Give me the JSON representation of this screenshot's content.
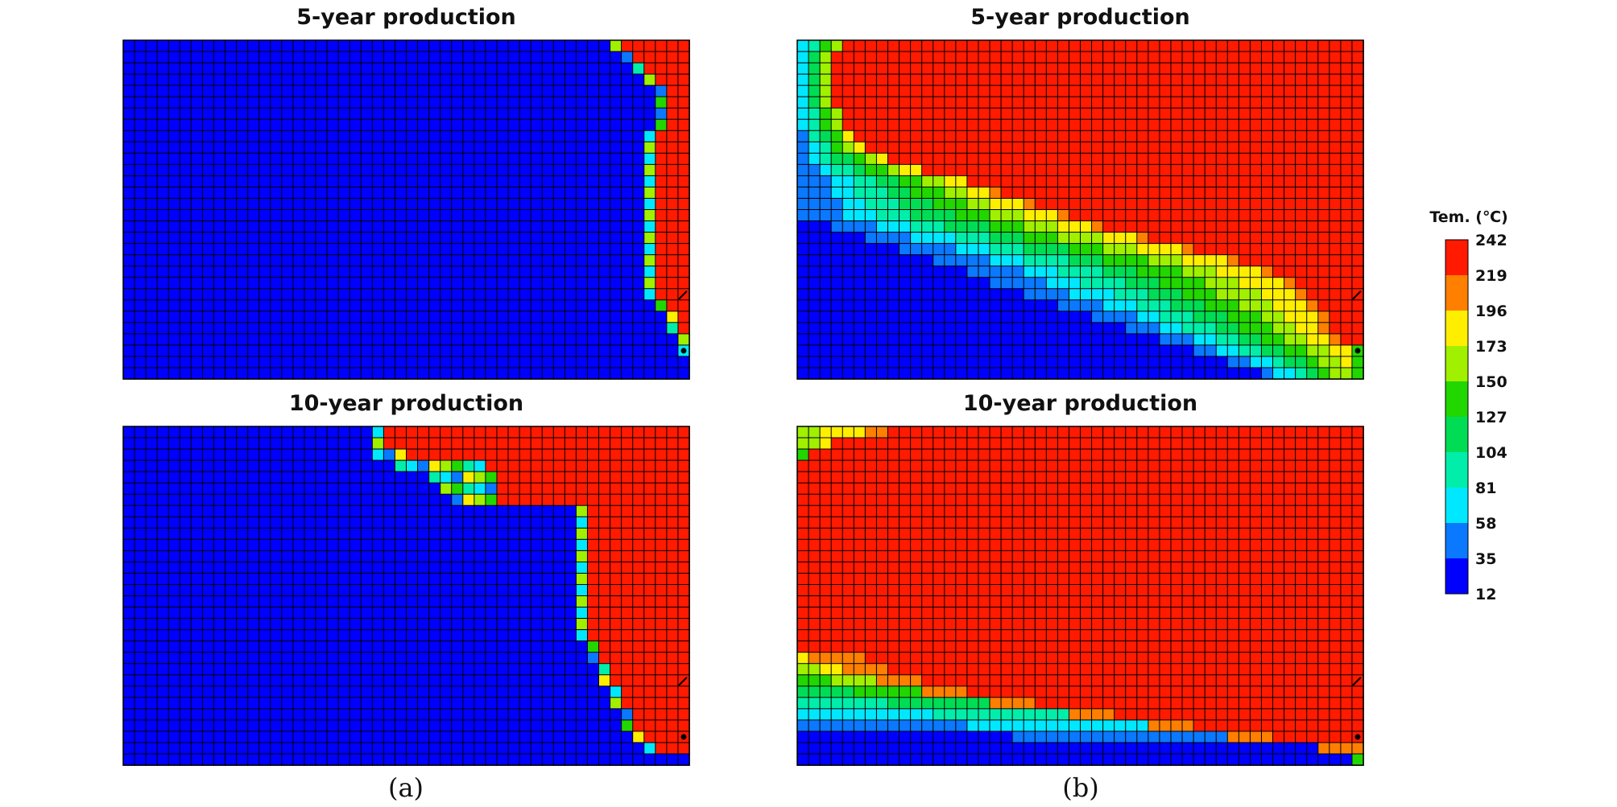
{
  "figure": {
    "panel_labels": [
      "(a)",
      "(b)"
    ]
  },
  "chart_data": {
    "type": "heatmap",
    "variable": "temperature",
    "colorbar": {
      "title": "Tem. (℃)",
      "ticks": [
        242,
        219,
        196,
        173,
        150,
        127,
        104,
        81,
        58,
        35,
        12
      ],
      "colors": [
        "#ff1a00",
        "#ff7f00",
        "#ffee00",
        "#a0f000",
        "#22d600",
        "#00dd55",
        "#00eeaa",
        "#00e8ff",
        "#0a78ff",
        "#0000ff"
      ]
    },
    "grid": {
      "cols": 50,
      "rows": 30
    },
    "panels": [
      {
        "id": "a-5yr",
        "title": "5-year production",
        "group": "(a)",
        "front": [
          [
            43,
            43
          ],
          [
            44,
            44
          ],
          [
            45,
            45
          ],
          [
            46,
            46
          ],
          [
            47,
            47
          ],
          [
            47,
            47
          ],
          [
            47,
            47
          ],
          [
            47,
            47
          ],
          [
            46,
            46
          ],
          [
            46,
            46
          ],
          [
            46,
            46
          ],
          [
            46,
            46
          ],
          [
            46,
            46
          ],
          [
            46,
            46
          ],
          [
            46,
            46
          ],
          [
            46,
            46
          ],
          [
            46,
            46
          ],
          [
            46,
            46
          ],
          [
            46,
            46
          ],
          [
            46,
            46
          ],
          [
            46,
            46
          ],
          [
            46,
            46
          ],
          [
            46,
            46
          ],
          [
            47,
            47
          ],
          [
            48,
            48
          ],
          [
            48,
            48
          ],
          [
            49,
            49
          ],
          [
            49,
            49
          ],
          [
            50,
            50
          ],
          [
            50,
            50
          ]
        ]
      },
      {
        "id": "b-5yr",
        "title": "5-year production",
        "group": "(b)",
        "front": [
          [
            0,
            4
          ],
          [
            0,
            3
          ],
          [
            0,
            3
          ],
          [
            0,
            3
          ],
          [
            0,
            3
          ],
          [
            0,
            3
          ],
          [
            0,
            3
          ],
          [
            0,
            4
          ],
          [
            0,
            5
          ],
          [
            0,
            6
          ],
          [
            0,
            8
          ],
          [
            0,
            11
          ],
          [
            0,
            13
          ],
          [
            0,
            14
          ],
          [
            0,
            16
          ],
          [
            0,
            18
          ],
          [
            0,
            21
          ],
          [
            0,
            24
          ],
          [
            0,
            28
          ],
          [
            0,
            31
          ],
          [
            0,
            34
          ],
          [
            0,
            37
          ],
          [
            0,
            40
          ],
          [
            0,
            43
          ],
          [
            0,
            46
          ],
          [
            0,
            48
          ],
          [
            0,
            50
          ],
          [
            0,
            50
          ],
          [
            0,
            50
          ],
          [
            0,
            50
          ]
        ],
        "hot_front": [
          [
            4,
            50
          ],
          [
            3,
            50
          ],
          [
            3,
            50
          ],
          [
            3,
            50
          ],
          [
            3,
            50
          ],
          [
            3,
            50
          ],
          [
            4,
            50
          ],
          [
            4,
            50
          ],
          [
            5,
            50
          ],
          [
            6,
            50
          ],
          [
            8,
            50
          ],
          [
            11,
            50
          ],
          [
            15,
            50
          ],
          [
            18,
            50
          ],
          [
            21,
            50
          ],
          [
            24,
            50
          ],
          [
            27,
            50
          ],
          [
            31,
            50
          ],
          [
            35,
            50
          ],
          [
            39,
            50
          ],
          [
            42,
            50
          ],
          [
            44,
            50
          ],
          [
            45,
            50
          ],
          [
            46,
            50
          ],
          [
            47,
            50
          ],
          [
            47,
            50
          ],
          [
            48,
            50
          ],
          [
            49,
            50
          ],
          [
            50,
            50
          ],
          [
            50,
            50
          ]
        ]
      },
      {
        "id": "a-10yr",
        "title": "10-year production",
        "group": "(a)",
        "front": [
          [
            22,
            22
          ],
          [
            22,
            22
          ],
          [
            22,
            24
          ],
          [
            24,
            31
          ],
          [
            27,
            32
          ],
          [
            28,
            32
          ],
          [
            29,
            32
          ],
          [
            40,
            40
          ],
          [
            40,
            40
          ],
          [
            40,
            40
          ],
          [
            40,
            40
          ],
          [
            40,
            40
          ],
          [
            40,
            40
          ],
          [
            40,
            40
          ],
          [
            40,
            40
          ],
          [
            40,
            40
          ],
          [
            40,
            40
          ],
          [
            40,
            40
          ],
          [
            40,
            40
          ],
          [
            41,
            41
          ],
          [
            41,
            41
          ],
          [
            42,
            42
          ],
          [
            42,
            42
          ],
          [
            43,
            43
          ],
          [
            43,
            43
          ],
          [
            44,
            44
          ],
          [
            44,
            44
          ],
          [
            45,
            45
          ],
          [
            46,
            46
          ],
          [
            50,
            50
          ]
        ]
      },
      {
        "id": "b-10yr",
        "title": "10-year production",
        "group": "(b)",
        "front": [
          [
            0,
            6
          ],
          [
            0,
            3
          ],
          [
            0,
            1
          ],
          [
            0,
            0
          ],
          [
            0,
            0
          ],
          [
            0,
            0
          ],
          [
            0,
            0
          ],
          [
            0,
            0
          ],
          [
            0,
            0
          ],
          [
            0,
            0
          ],
          [
            0,
            0
          ],
          [
            0,
            0
          ],
          [
            0,
            0
          ],
          [
            0,
            0
          ],
          [
            0,
            0
          ],
          [
            0,
            0
          ],
          [
            0,
            0
          ],
          [
            0,
            0
          ],
          [
            0,
            0
          ],
          [
            0,
            0
          ],
          [
            0,
            0
          ],
          [
            0,
            3
          ],
          [
            0,
            6
          ],
          [
            0,
            9
          ],
          [
            0,
            13
          ],
          [
            0,
            19
          ],
          [
            0,
            26
          ],
          [
            0,
            33
          ],
          [
            0,
            40
          ],
          [
            0,
            50
          ]
        ]
      }
    ]
  }
}
